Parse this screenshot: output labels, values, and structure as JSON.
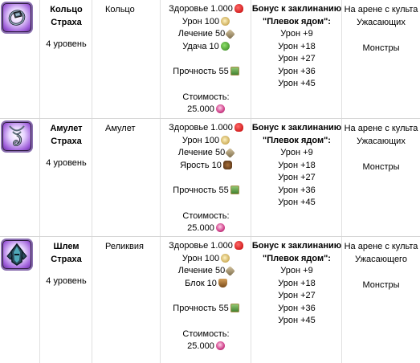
{
  "items": [
    {
      "icon": "ring-icon",
      "name": "Кольцо Страха",
      "level": "4 уровень",
      "type": "Кольцо",
      "stats": [
        {
          "label": "Здоровье 1.000",
          "icon": "heart-icon"
        },
        {
          "label": "Урон 100",
          "icon": "damage-icon"
        },
        {
          "label": "Лечение 50",
          "icon": "healing-icon"
        },
        {
          "label": "Удача 10",
          "icon": "luck-icon"
        }
      ],
      "durability": "Прочность 55",
      "cost_label": "Стоимость:",
      "cost_value": "25.000",
      "bonus_title": "Бонус к заклинанию",
      "bonus_spell": "\"Плевок ядом\":",
      "bonus_lines": [
        "Урон +9",
        "Урон +18",
        "Урон +27",
        "Урон +36",
        "Урон +45"
      ],
      "source_1": "На арене с культа",
      "source_2": "Ужасающих",
      "source_3": "Монстры"
    },
    {
      "icon": "amulet-icon",
      "name": "Амулет Страха",
      "level": "4 уровень",
      "type": "Амулет",
      "stats": [
        {
          "label": "Здоровье 1.000",
          "icon": "heart-icon"
        },
        {
          "label": "Урон 100",
          "icon": "damage-icon"
        },
        {
          "label": "Лечение 50",
          "icon": "healing-icon"
        },
        {
          "label": "Ярость 10",
          "icon": "rage-icon"
        }
      ],
      "durability": "Прочность 55",
      "cost_label": "Стоимость:",
      "cost_value": "25.000",
      "bonus_title": "Бонус к заклинанию",
      "bonus_spell": "\"Плевок ядом\":",
      "bonus_lines": [
        "Урон +9",
        "Урон +18",
        "Урон +27",
        "Урон +36",
        "Урон +45"
      ],
      "source_1": "На арене с культа",
      "source_2": "Ужасающих",
      "source_3": "Монстры"
    },
    {
      "icon": "helmet-icon",
      "name": "Шлем Страха",
      "level": "4 уровень",
      "type": "Реликвия",
      "stats": [
        {
          "label": "Здоровье 1.000",
          "icon": "heart-icon"
        },
        {
          "label": "Урон 100",
          "icon": "damage-icon"
        },
        {
          "label": "Лечение 50",
          "icon": "healing-icon"
        },
        {
          "label": "Блок 10",
          "icon": "block-icon"
        }
      ],
      "durability": "Прочность 55",
      "cost_label": "Стоимость:",
      "cost_value": "25.000",
      "bonus_title": "Бонус к заклинанию",
      "bonus_spell": "\"Плевок ядом\":",
      "bonus_lines": [
        "Урон +9",
        "Урон +18",
        "Урон +27",
        "Урон +36",
        "Урон +45"
      ],
      "source_1": "На арене с культа",
      "source_2": "Ужасающего",
      "source_3": "Монстры"
    }
  ]
}
